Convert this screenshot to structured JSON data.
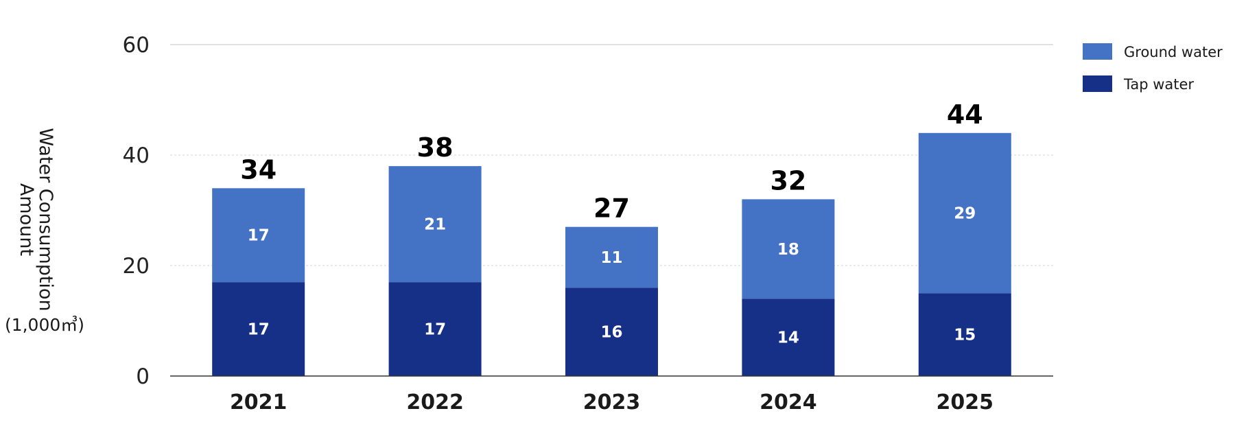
{
  "chart_data": {
    "type": "bar",
    "stacked": true,
    "categories": [
      "2021",
      "2022",
      "2023",
      "2024",
      "2025"
    ],
    "series": [
      {
        "name": "Tap water",
        "values": [
          17,
          17,
          16,
          14,
          15
        ],
        "labels": [
          "17",
          "17",
          "16",
          "14",
          "15"
        ],
        "color": "#163087"
      },
      {
        "name": "Ground water",
        "values": [
          17,
          21,
          11,
          18,
          29
        ],
        "labels": [
          "17",
          "21",
          "11",
          "18",
          "29"
        ],
        "color": "#4472c4"
      }
    ],
    "totals": [
      34,
      38,
      27,
      32,
      44
    ],
    "total_labels": [
      "34",
      "38",
      "27",
      "32",
      "44"
    ],
    "ylim": [
      0,
      60
    ],
    "yticks": [
      "0",
      "20",
      "40",
      "60"
    ],
    "ylabel_line1": "Water Consumption",
    "ylabel_line2": "Amount",
    "yunit": "(1,000㎥)",
    "xlabel": "",
    "title": "",
    "grid": true,
    "legend_position": "top-right",
    "legend": [
      {
        "name": "Ground water",
        "color": "#4472c4"
      },
      {
        "name": "Tap water",
        "color": "#163087"
      }
    ]
  }
}
